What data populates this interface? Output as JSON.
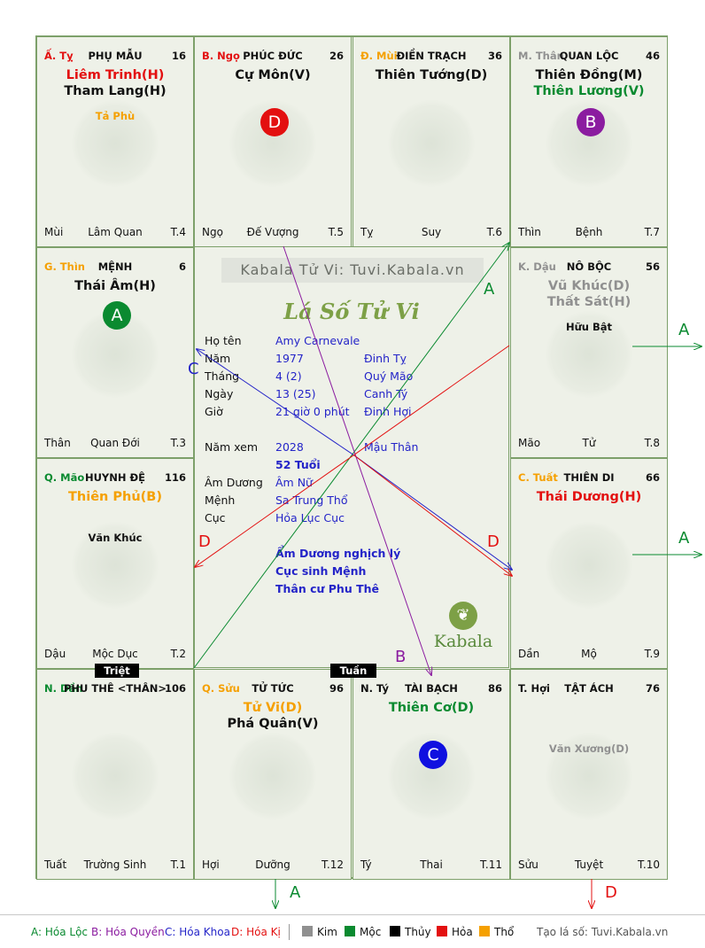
{
  "colors": {
    "kim": "#909090",
    "moc": "#0a8a30",
    "thuy": "#000000",
    "hoa": "#e31010",
    "tho": "#f5a000",
    "blue": "#2424c8",
    "purple": "#8b1ca0",
    "border": "#7da06a"
  },
  "watermark": "Kabala Tử Vi: Tuvi.Kabala.vn",
  "center_title": "Lá Số Tử Vi",
  "brand": "Kabala",
  "info": {
    "ho_ten_label": "Họ tên",
    "ho_ten": "Amy Carnevale",
    "nam_label": "Năm",
    "nam": "1977",
    "nam_can_chi": "Đinh Tỵ",
    "thang_label": "Tháng",
    "thang": "4  (2)",
    "thang_can_chi": "Quý Mão",
    "ngay_label": "Ngày",
    "ngay": "13  (25)",
    "ngay_can_chi": "Canh Tý",
    "gio_label": "Giờ",
    "gio": "21 giờ 0 phút",
    "gio_can_chi": "Đinh Hợi",
    "nam_xem_label": "Năm xem",
    "nam_xem": "2028",
    "nam_xem_can_chi": "Mậu Thân",
    "tuoi": "52 Tuổi",
    "am_duong_label": "Âm Dương",
    "am_duong": "Âm Nữ",
    "menh_label": "Mệnh",
    "menh": "Sa Trung Thổ",
    "cuc_label": "Cục",
    "cuc": "Hỏa Lục Cục",
    "note1": "Ẩm Dương nghịch lý",
    "note2": "Cục sinh Mệnh",
    "note3": "Thân cư Phu Thê"
  },
  "cells": [
    {
      "can": "Ấ. Tỵ",
      "can_color": "#e31010",
      "palace": "PHỤ MẪU",
      "num": "16",
      "s1": "Liêm Trinh(H)",
      "s1_color": "#e31010",
      "s2": "Tham Lang(H)",
      "s2_color": "#111111",
      "minor1": "Tả Phù",
      "minor1_color": "#f5a000",
      "minor2": "",
      "badge": "",
      "badge_color": "",
      "branch": "Mùi",
      "stage": "Lâm Quan",
      "t": "T.4"
    },
    {
      "can": "B. Ngọ",
      "can_color": "#e31010",
      "palace": "PHÚC ĐỨC",
      "num": "26",
      "s1": "Cự Môn(V)",
      "s1_color": "#111111",
      "s2": "",
      "s2_color": "#111111",
      "minor1": "",
      "minor1_color": "#111111",
      "minor2": "",
      "badge": "D",
      "badge_color": "#e31010",
      "branch": "Ngọ",
      "stage": "Đế Vượng",
      "t": "T.5"
    },
    {
      "can": "Đ. Mùi",
      "can_color": "#f5a000",
      "palace": "ĐIỀN TRẠCH",
      "num": "36",
      "s1": "Thiên Tướng(D)",
      "s1_color": "#111111",
      "s2": "",
      "s2_color": "#111111",
      "minor1": "",
      "minor1_color": "#111111",
      "minor2": "",
      "badge": "",
      "badge_color": "",
      "branch": "Tỵ",
      "stage": "Suy",
      "t": "T.6"
    },
    {
      "can": "M. Thân",
      "can_color": "#909090",
      "palace": "QUAN LỘC",
      "num": "46",
      "s1": "Thiên Đồng(M)",
      "s1_color": "#111111",
      "s2": "Thiên Lương(V)",
      "s2_color": "#0a8a30",
      "minor1": "",
      "minor1_color": "#111111",
      "minor2": "",
      "badge": "B",
      "badge_color": "#8b1ca0",
      "branch": "Thìn",
      "stage": "Bệnh",
      "t": "T.7"
    },
    {
      "can": "G. Thìn",
      "can_color": "#f5a000",
      "palace": "MỆNH",
      "num": "6",
      "s1": "Thái Âm(H)",
      "s1_color": "#111111",
      "s2": "",
      "s2_color": "#111111",
      "minor1": "",
      "minor1_color": "#111111",
      "minor2": "",
      "badge": "A",
      "badge_color": "#0a8a30",
      "branch": "Thân",
      "stage": "Quan Đới",
      "t": "T.3"
    },
    {
      "can": "K. Dậu",
      "can_color": "#909090",
      "palace": "NÔ BỘC",
      "num": "56",
      "s1": "Vũ Khúc(D)",
      "s1_color": "#909090",
      "s2": "Thất Sát(H)",
      "s2_color": "#909090",
      "minor1": "Hữu Bật",
      "minor1_color": "#111111",
      "minor2": "",
      "badge": "",
      "badge_color": "",
      "branch": "Mão",
      "stage": "Tử",
      "t": "T.8"
    },
    {
      "can": "Q. Mão",
      "can_color": "#0a8a30",
      "palace": "HUYNH ĐỆ",
      "num": "116",
      "s1": "Thiên Phủ(B)",
      "s1_color": "#f5a000",
      "s2": "",
      "s2_color": "#111111",
      "minor1": "Văn Khúc",
      "minor1_color": "#111111",
      "minor2": "",
      "badge": "",
      "badge_color": "",
      "branch": "Dậu",
      "stage": "Mộc Dục",
      "t": "T.2"
    },
    {
      "can": "C. Tuất",
      "can_color": "#f5a000",
      "palace": "THIÊN DI",
      "num": "66",
      "s1": "Thái Dương(H)",
      "s1_color": "#e31010",
      "s2": "",
      "s2_color": "#111111",
      "minor1": "",
      "minor1_color": "#111111",
      "minor2": "",
      "badge": "",
      "badge_color": "",
      "branch": "Dần",
      "stage": "Mộ",
      "t": "T.9"
    },
    {
      "can": "N. Dần",
      "can_color": "#0a8a30",
      "palace": "PHU THÊ <THÂN>",
      "num": "106",
      "s1": "",
      "s1_color": "#111111",
      "s2": "",
      "s2_color": "#111111",
      "minor1": "",
      "minor1_color": "#111111",
      "minor2": "",
      "badge": "",
      "badge_color": "",
      "branch": "Tuất",
      "stage": "Trường Sinh",
      "t": "T.1"
    },
    {
      "can": "Q. Sửu",
      "can_color": "#f5a000",
      "palace": "TỬ TỨC",
      "num": "96",
      "s1": "Tử Vi(D)",
      "s1_color": "#f5a000",
      "s2": "Phá Quân(V)",
      "s2_color": "#111111",
      "minor1": "",
      "minor1_color": "#111111",
      "minor2": "",
      "badge": "",
      "badge_color": "",
      "branch": "Hợi",
      "stage": "Dưỡng",
      "t": "T.12"
    },
    {
      "can": "N. Tý",
      "can_color": "#111111",
      "palace": "TÀI BẠCH",
      "num": "86",
      "s1": "Thiên Cơ(D)",
      "s1_color": "#0a8a30",
      "s2": "",
      "s2_color": "#111111",
      "minor1": "",
      "minor1_color": "#111111",
      "minor2": "",
      "badge": "C",
      "badge_color": "#1010e0",
      "branch": "Tý",
      "stage": "Thai",
      "t": "T.11"
    },
    {
      "can": "T. Hợi",
      "can_color": "#111111",
      "palace": "TẬT ÁCH",
      "num": "76",
      "s1": "",
      "s1_color": "#111111",
      "s2": "",
      "s2_color": "#111111",
      "minor1": "Văn Xương(D)",
      "minor1_color": "#909090",
      "minor2": "",
      "badge": "",
      "badge_color": "",
      "branch": "Sửu",
      "stage": "Tuyệt",
      "t": "T.10"
    }
  ],
  "tags": {
    "triet": "Triệt",
    "tuan": "Tuần"
  },
  "arrow_labels": {
    "a": "A",
    "b": "B",
    "c": "C",
    "d": "D"
  },
  "legend": {
    "a": "A: Hóa Lộc",
    "b": "B: Hóa Quyền",
    "c": "C: Hóa Khoa",
    "d": "D: Hóa Kị",
    "kim": "Kim",
    "moc": "Mộc",
    "thuy": "Thủy",
    "hoa": "Hỏa",
    "tho": "Thổ",
    "site": "Tạo lá số: Tuvi.Kabala.vn"
  }
}
